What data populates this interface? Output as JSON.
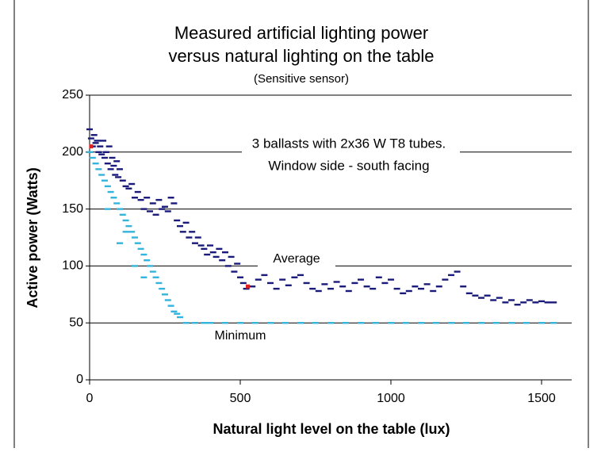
{
  "chart_data": {
    "type": "scatter",
    "title": "Measured artificial lighting power",
    "subtitle": "versus natural lighting on the table",
    "note": "(Sensitive sensor)",
    "annotations": [
      "3 ballasts with 2x36 W  T8 tubes.",
      "Window side - south facing"
    ],
    "xlabel": "Natural light level on the table (lux)",
    "ylabel": "Active power (Watts)",
    "xlim": [
      0,
      1600
    ],
    "xticks": [
      0,
      500,
      1000,
      1500
    ],
    "ylim": [
      0,
      250
    ],
    "yticks": [
      0,
      50,
      100,
      150,
      200,
      250
    ],
    "grid": true,
    "series": [
      {
        "name": "Average",
        "color": "#1a1a7a",
        "x": [
          0,
          5,
          10,
          15,
          20,
          25,
          30,
          35,
          40,
          45,
          50,
          55,
          60,
          65,
          70,
          75,
          80,
          85,
          90,
          95,
          100,
          110,
          120,
          130,
          140,
          150,
          160,
          170,
          180,
          190,
          200,
          210,
          220,
          230,
          240,
          250,
          260,
          270,
          280,
          290,
          300,
          310,
          320,
          330,
          340,
          350,
          360,
          370,
          380,
          390,
          400,
          410,
          420,
          430,
          440,
          450,
          460,
          470,
          480,
          490,
          500,
          510,
          520,
          540,
          560,
          580,
          600,
          620,
          640,
          660,
          680,
          700,
          720,
          740,
          760,
          780,
          800,
          820,
          840,
          860,
          880,
          900,
          920,
          940,
          960,
          980,
          1000,
          1020,
          1040,
          1060,
          1080,
          1100,
          1120,
          1140,
          1160,
          1180,
          1200,
          1220,
          1240,
          1260,
          1280,
          1300,
          1320,
          1340,
          1360,
          1380,
          1400,
          1420,
          1440,
          1460,
          1480,
          1500,
          1520,
          1540
        ],
        "values": [
          220,
          212,
          205,
          215,
          208,
          210,
          200,
          205,
          198,
          210,
          195,
          200,
          190,
          205,
          185,
          195,
          188,
          180,
          192,
          178,
          185,
          175,
          170,
          168,
          172,
          160,
          165,
          158,
          150,
          160,
          148,
          155,
          145,
          158,
          150,
          152,
          148,
          160,
          155,
          140,
          135,
          130,
          138,
          125,
          130,
          120,
          125,
          118,
          115,
          110,
          118,
          112,
          108,
          115,
          105,
          112,
          100,
          108,
          95,
          102,
          90,
          85,
          80,
          82,
          88,
          92,
          85,
          80,
          88,
          83,
          90,
          92,
          85,
          80,
          78,
          84,
          80,
          86,
          82,
          78,
          85,
          88,
          82,
          80,
          90,
          85,
          88,
          80,
          76,
          78,
          82,
          80,
          84,
          78,
          82,
          88,
          92,
          95,
          82,
          76,
          74,
          72,
          74,
          70,
          72,
          68,
          70,
          66,
          68,
          70,
          68,
          69,
          68,
          68
        ]
      },
      {
        "name": "Minimum",
        "color": "#33b4dc",
        "x": [
          0,
          10,
          20,
          30,
          40,
          50,
          60,
          70,
          80,
          90,
          100,
          110,
          120,
          130,
          140,
          150,
          160,
          170,
          180,
          190,
          200,
          210,
          220,
          230,
          240,
          250,
          260,
          270,
          280,
          290,
          300,
          320,
          350,
          380,
          400,
          450,
          500,
          550,
          600,
          650,
          700,
          750,
          800,
          850,
          900,
          950,
          1000,
          1050,
          1100,
          1150,
          1200,
          1250,
          1300,
          1350,
          1400,
          1450,
          1500,
          1540,
          60,
          100,
          150,
          180,
          120
        ],
        "values": [
          200,
          195,
          190,
          185,
          180,
          175,
          170,
          165,
          160,
          155,
          150,
          145,
          140,
          135,
          130,
          125,
          120,
          115,
          110,
          105,
          100,
          95,
          90,
          85,
          80,
          75,
          70,
          65,
          60,
          58,
          55,
          50,
          50,
          50,
          50,
          50,
          50,
          50,
          50,
          50,
          50,
          50,
          50,
          50,
          50,
          50,
          50,
          50,
          50,
          50,
          50,
          50,
          50,
          50,
          50,
          50,
          50,
          50,
          150,
          120,
          100,
          90,
          130
        ]
      },
      {
        "color": "#e02020",
        "x": [
          5,
          525
        ],
        "values": [
          205,
          82
        ]
      }
    ]
  }
}
